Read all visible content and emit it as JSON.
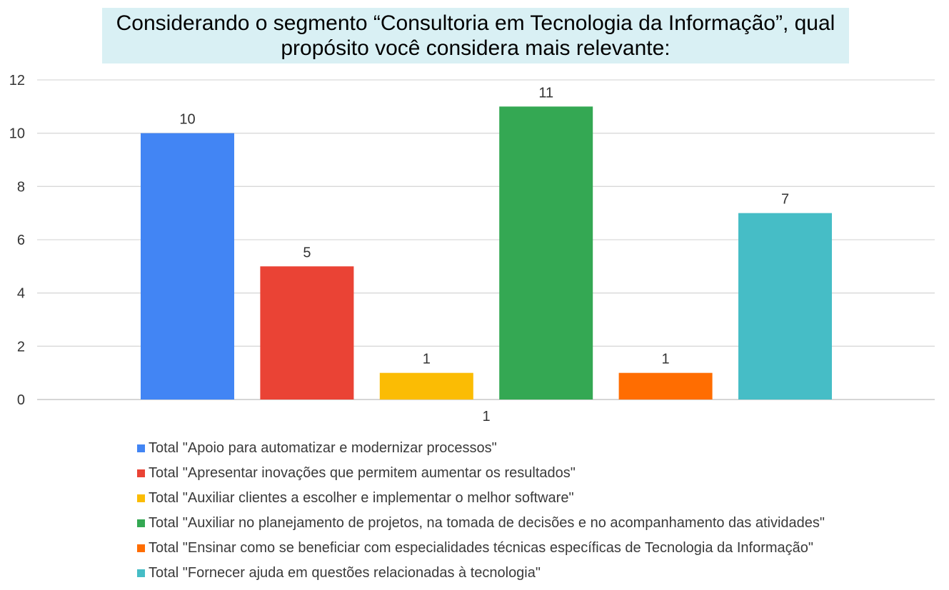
{
  "chart_data": {
    "type": "bar",
    "title": "Considerando o segmento “Consultoria em Tecnologia da Informação”, qual propósito você considera mais relevante:",
    "categories": [
      "1"
    ],
    "ylim": [
      0,
      12
    ],
    "yticks": [
      0,
      2,
      4,
      6,
      8,
      10,
      12
    ],
    "grid": true,
    "legend_position": "bottom",
    "series": [
      {
        "name": "Total \"Apoio para automatizar e modernizar processos\"",
        "values": [
          10
        ],
        "color": "#4285f4"
      },
      {
        "name": "Total \"Apresentar inovações que permitem aumentar os resultados\"",
        "values": [
          5
        ],
        "color": "#ea4335"
      },
      {
        "name": "Total \"Auxiliar clientes a escolher e implementar o melhor software\"",
        "values": [
          1
        ],
        "color": "#fbbc04"
      },
      {
        "name": "Total \"Auxiliar no planejamento de projetos, na tomada de decisões e no acompanhamento das atividades\"",
        "values": [
          11
        ],
        "color": "#34a853"
      },
      {
        "name": "Total \"Ensinar como se beneficiar com especialidades técnicas específicas de Tecnologia da Informação\"",
        "values": [
          1
        ],
        "color": "#ff6d01"
      },
      {
        "name": "Total \"Fornecer ajuda em questões relacionadas à tecnologia\"",
        "values": [
          7
        ],
        "color": "#46bdc6"
      }
    ]
  }
}
